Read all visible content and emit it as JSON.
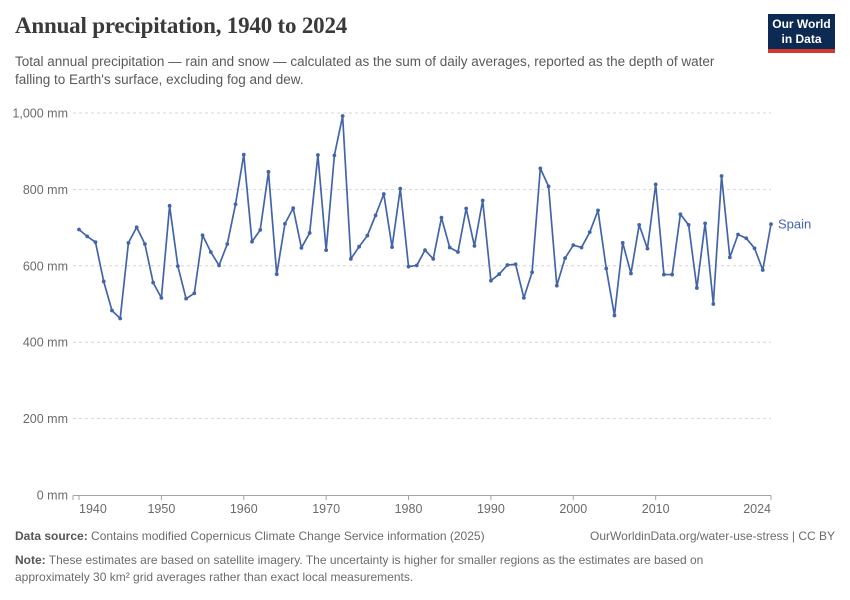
{
  "header": {
    "title": "Annual precipitation, 1940 to 2024",
    "subtitle": "Total annual precipitation — rain and snow — calculated as the sum of daily averages, reported as the depth of water falling to Earth's surface, excluding fog and dew.",
    "logo_line1": "Our World",
    "logo_line2": "in Data"
  },
  "colors": {
    "line": "#4365a8",
    "entity_label": "#4365a8",
    "grid": "#d6d6d6",
    "axis": "#a3a3a3",
    "tick_label": "#6b6b6b",
    "title": "#3a3a3a",
    "logo_bg": "#0d2a52",
    "logo_red": "#d4382d"
  },
  "chart_data": {
    "type": "line",
    "title": "Annual precipitation, 1940 to 2024",
    "unit": "mm",
    "xlabel": "",
    "ylabel": "",
    "xlim": [
      1940,
      2024
    ],
    "ylim": [
      0,
      1000
    ],
    "grid": "horizontal-dashed",
    "legend_position": "end-of-line-label",
    "x_ticks": [
      {
        "value": 1940,
        "label": "1940"
      },
      {
        "value": 1950,
        "label": "1950"
      },
      {
        "value": 1960,
        "label": "1960"
      },
      {
        "value": 1970,
        "label": "1970"
      },
      {
        "value": 1980,
        "label": "1980"
      },
      {
        "value": 1990,
        "label": "1990"
      },
      {
        "value": 2000,
        "label": "2000"
      },
      {
        "value": 2010,
        "label": "2010"
      },
      {
        "value": 2024,
        "label": "2024"
      }
    ],
    "y_ticks": [
      {
        "value": 0,
        "label": "0 mm"
      },
      {
        "value": 200,
        "label": "200 mm"
      },
      {
        "value": 400,
        "label": "400 mm"
      },
      {
        "value": 600,
        "label": "600 mm"
      },
      {
        "value": 800,
        "label": "800 mm"
      },
      {
        "value": 1000,
        "label": "1,000 mm"
      }
    ],
    "years": [
      1940,
      1941,
      1942,
      1943,
      1944,
      1945,
      1946,
      1947,
      1948,
      1949,
      1950,
      1951,
      1952,
      1953,
      1954,
      1955,
      1956,
      1957,
      1958,
      1959,
      1960,
      1961,
      1962,
      1963,
      1964,
      1965,
      1966,
      1967,
      1968,
      1969,
      1970,
      1971,
      1972,
      1973,
      1974,
      1975,
      1976,
      1977,
      1978,
      1979,
      1980,
      1981,
      1982,
      1983,
      1984,
      1985,
      1986,
      1987,
      1988,
      1989,
      1990,
      1991,
      1992,
      1993,
      1994,
      1995,
      1996,
      1997,
      1998,
      1999,
      2000,
      2001,
      2002,
      2003,
      2004,
      2005,
      2006,
      2007,
      2008,
      2009,
      2010,
      2011,
      2012,
      2013,
      2014,
      2015,
      2016,
      2017,
      2018,
      2019,
      2020,
      2021,
      2022,
      2023,
      2024
    ],
    "series": [
      {
        "name": "Spain",
        "values": [
          695,
          677,
          662,
          559,
          483,
          462,
          660,
          701,
          657,
          556,
          516,
          757,
          599,
          514,
          528,
          680,
          636,
          601,
          657,
          761,
          891,
          663,
          694,
          846,
          578,
          710,
          751,
          647,
          686,
          890,
          641,
          889,
          992,
          618,
          650,
          679,
          732,
          788,
          649,
          802,
          598,
          601,
          641,
          618,
          726,
          648,
          636,
          750,
          652,
          771,
          561,
          578,
          602,
          604,
          516,
          583,
          855,
          808,
          548,
          620,
          654,
          648,
          688,
          745,
          593,
          470,
          660,
          580,
          707,
          645,
          813,
          577,
          577,
          735,
          707,
          542,
          711,
          500,
          835,
          622,
          682,
          672,
          646,
          589,
          709
        ]
      }
    ]
  },
  "footer": {
    "data_source_label": "Data source:",
    "data_source_text": "Contains modified Copernicus Climate Change Service information (2025)",
    "link_text": "OurWorldinData.org/water-use-stress | CC BY",
    "note_label": "Note:",
    "note_text": "These estimates are based on satellite imagery. The uncertainty is higher for smaller regions as the estimates are based on approximately 30 km² grid averages rather than exact local measurements."
  }
}
